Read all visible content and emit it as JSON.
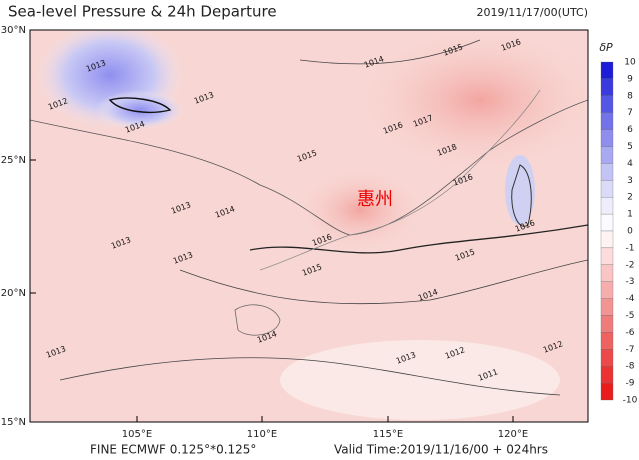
{
  "header": {
    "title": "Sea-level Pressure & 24h Departure",
    "time": "2019/11/17/00(UTC)"
  },
  "map": {
    "lat_ticks": [
      "30°N",
      "25°N",
      "20°N",
      "15°N"
    ],
    "lon_ticks": [
      "105°E",
      "110°E",
      "115°E",
      "120°E"
    ],
    "place_label": "惠州",
    "contour_labels": [
      "1013",
      "1012",
      "1014",
      "1013",
      "1014",
      "1015",
      "1016",
      "1016",
      "1017",
      "1018",
      "1015",
      "1016",
      "1013",
      "1014",
      "1013",
      "1013",
      "1016",
      "1015",
      "1015",
      "1014",
      "1014",
      "1013",
      "1012",
      "1011",
      "1012",
      "1013",
      "1016"
    ]
  },
  "colorbar": {
    "title": "δP",
    "labels": [
      10,
      9,
      8,
      7,
      6,
      5,
      4,
      3,
      2,
      1,
      0,
      -1,
      -2,
      -3,
      -4,
      -5,
      -6,
      -7,
      -8,
      -9,
      -10
    ]
  },
  "footer": {
    "model": "FINE ECMWF 0.125°*0.125°",
    "valid": "Valid Time:2019/11/16/00 + 024hrs"
  }
}
